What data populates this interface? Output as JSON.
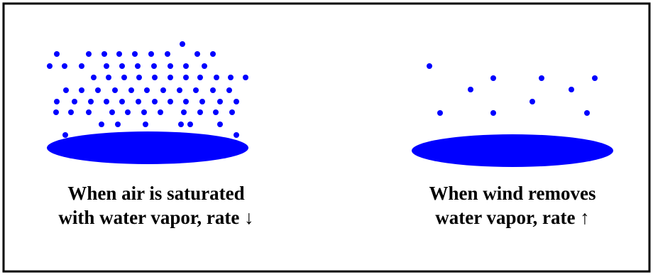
{
  "panels": [
    {
      "caption": [
        "When air is saturated",
        "with water vapor, rate ↓"
      ]
    },
    {
      "caption": [
        "When wind removes",
        "water vapor, rate ↑"
      ]
    }
  ]
}
